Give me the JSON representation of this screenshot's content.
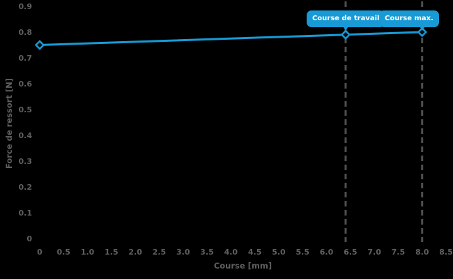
{
  "chart_data": {
    "type": "line",
    "title": "",
    "xlabel": "Course [mm]",
    "ylabel": "Force de ressort [N]",
    "xlim": [
      0,
      8.5
    ],
    "ylim": [
      0,
      0.9
    ],
    "grid": false,
    "legend": false,
    "background_color": "#000000",
    "x_tick_values": [
      0,
      0.5,
      1,
      1.5,
      2,
      2.5,
      3,
      3.5,
      4,
      4.5,
      5,
      5.5,
      6,
      6.5,
      7,
      7.5,
      8,
      8.5
    ],
    "x_tick_labels": [
      "0",
      "0.5",
      "1.0",
      "1.5",
      "2.0",
      "2.5",
      "3.0",
      "3.5",
      "4.0",
      "4.5",
      "5.0",
      "5.5",
      "6.0",
      "6.5",
      "7.0",
      "7.5",
      "8.0",
      "8.5"
    ],
    "y_tick_values": [
      0,
      0.1,
      0.2,
      0.3,
      0.4,
      0.5,
      0.6,
      0.7,
      0.8,
      0.9
    ],
    "y_tick_labels": [
      "0",
      "0.1",
      "0.2",
      "0.3",
      "0.4",
      "0.5",
      "0.6",
      "0.7",
      "0.8",
      "0.9"
    ],
    "series": [
      {
        "name": "Force de ressort",
        "color": "#189ad6",
        "marker": "diamond",
        "points": [
          [
            0,
            0.75
          ],
          [
            6.4,
            0.79
          ],
          [
            8.0,
            0.8
          ]
        ]
      }
    ],
    "annotations": [
      {
        "label": "Course de travail",
        "x": 6.4,
        "y": 0.79
      },
      {
        "label": "Course max.",
        "x": 8.0,
        "y": 0.8
      }
    ]
  },
  "styles": {
    "accent_blue": "#189ad6",
    "tick_text_color": "#5f5f5f",
    "axis_title_color": "#5f5f5f",
    "dashed_line_color": "#4f4f4f",
    "marker_fill": "#0b0b0b",
    "badge_text_color": "#ffffff"
  }
}
